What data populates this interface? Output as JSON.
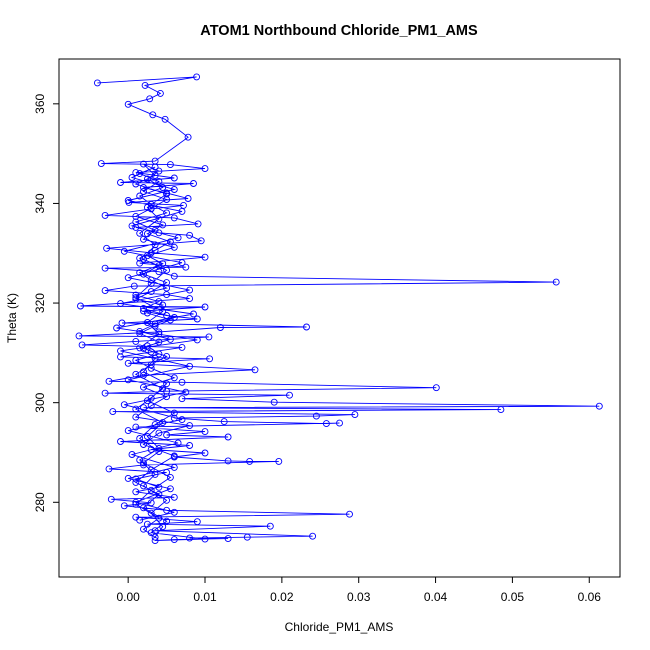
{
  "chart_data": {
    "type": "line",
    "title": "ATOM1 Northbound Chloride_PM1_AMS",
    "xlabel": "Chloride_PM1_AMS",
    "ylabel": "Theta (K)",
    "xlim": [
      -0.009,
      0.064
    ],
    "ylim": [
      265,
      369
    ],
    "x_ticks": [
      0.0,
      0.01,
      0.02,
      0.03,
      0.04,
      0.05,
      0.06
    ],
    "x_tick_labels": [
      "0.00",
      "0.01",
      "0.02",
      "0.03",
      "0.04",
      "0.05",
      "0.06"
    ],
    "y_ticks": [
      280,
      300,
      320,
      340,
      360
    ],
    "y_tick_labels": [
      "280",
      "300",
      "320",
      "340",
      "360"
    ],
    "grid": false,
    "legend": "none",
    "colors": {
      "series": "#0000ff",
      "axis": "#000000"
    },
    "series": [
      {
        "marker": "open-circle",
        "line": true,
        "points": [
          [
            -0.004,
            364.2
          ],
          [
            0.0089,
            365.4
          ],
          [
            0.0022,
            363.7
          ],
          [
            0.0042,
            362.1
          ],
          [
            0.0028,
            361.0
          ],
          [
            0.0,
            359.9
          ],
          [
            0.0032,
            357.8
          ],
          [
            0.0048,
            356.9
          ],
          [
            0.0078,
            353.3
          ],
          [
            0.0035,
            348.5
          ],
          [
            -0.0035,
            348.0
          ],
          [
            0.0055,
            347.8
          ],
          [
            0.01,
            347.0
          ],
          [
            0.001,
            346.2
          ],
          [
            0.006,
            345.1
          ],
          [
            -0.001,
            344.2
          ],
          [
            0.0085,
            344.0
          ],
          [
            0.002,
            343.2
          ],
          [
            0.005,
            342.1
          ],
          [
            0.0078,
            341.0
          ],
          [
            0.0001,
            340.2
          ],
          [
            0.0072,
            339.6
          ],
          [
            0.003,
            338.9
          ],
          [
            -0.003,
            337.6
          ],
          [
            0.006,
            337.1
          ],
          [
            0.0091,
            335.9
          ],
          [
            0.001,
            335.2
          ],
          [
            0.004,
            334.1
          ],
          [
            0.008,
            333.6
          ],
          [
            0.0095,
            332.5
          ],
          [
            -0.0028,
            331.0
          ],
          [
            0.003,
            330.1
          ],
          [
            0.01,
            329.2
          ],
          [
            0.0015,
            328.0
          ],
          [
            0.0075,
            327.2
          ],
          [
            -0.003,
            327.0
          ],
          [
            0.004,
            326.3
          ],
          [
            0.006,
            325.4
          ],
          [
            0.0557,
            324.2
          ],
          [
            0.0008,
            323.4
          ],
          [
            -0.003,
            322.5
          ],
          [
            0.005,
            321.7
          ],
          [
            0.008,
            320.9
          ],
          [
            -0.0062,
            319.4
          ],
          [
            0.01,
            319.2
          ],
          [
            0.002,
            318.4
          ],
          [
            0.005,
            317.5
          ],
          [
            0.009,
            316.8
          ],
          [
            -0.0008,
            316.0
          ],
          [
            0.0232,
            315.2
          ],
          [
            0.012,
            315.1
          ],
          [
            0.004,
            314.2
          ],
          [
            -0.0064,
            313.4
          ],
          [
            0.0105,
            313.2
          ],
          [
            0.001,
            312.3
          ],
          [
            -0.006,
            311.6
          ],
          [
            0.007,
            311.1
          ],
          [
            0.003,
            310.2
          ],
          [
            -0.001,
            309.2
          ],
          [
            0.0106,
            308.8
          ],
          [
            0.0,
            307.9
          ],
          [
            0.0165,
            306.6
          ],
          [
            0.002,
            305.5
          ],
          [
            -0.0025,
            304.3
          ],
          [
            0.007,
            304.1
          ],
          [
            0.0401,
            303.0
          ],
          [
            0.005,
            302.3
          ],
          [
            -0.003,
            301.9
          ],
          [
            0.021,
            301.5
          ],
          [
            0.007,
            300.8
          ],
          [
            0.019,
            300.1
          ],
          [
            0.0613,
            299.3
          ],
          [
            0.002,
            299.0
          ],
          [
            0.0485,
            298.6
          ],
          [
            -0.002,
            298.2
          ],
          [
            0.0295,
            297.6
          ],
          [
            0.0245,
            297.3
          ],
          [
            0.006,
            296.9
          ],
          [
            0.0125,
            296.2
          ],
          [
            0.0258,
            295.8
          ],
          [
            0.0275,
            295.9
          ],
          [
            0.001,
            295.1
          ],
          [
            0.01,
            294.2
          ],
          [
            0.005,
            293.5
          ],
          [
            0.013,
            293.1
          ],
          [
            -0.001,
            292.2
          ],
          [
            0.008,
            291.4
          ],
          [
            0.003,
            290.6
          ],
          [
            0.01,
            289.9
          ],
          [
            0.006,
            289.1
          ],
          [
            0.013,
            288.3
          ],
          [
            0.0158,
            288.2
          ],
          [
            0.0196,
            288.2
          ],
          [
            0.002,
            287.5
          ],
          [
            -0.0025,
            286.7
          ],
          [
            0.005,
            286.0
          ],
          [
            0.001,
            284.7
          ],
          [
            0.004,
            283.0
          ],
          [
            0.001,
            282.1
          ],
          [
            0.006,
            281.0
          ],
          [
            -0.0022,
            280.6
          ],
          [
            0.003,
            279.9
          ],
          [
            -0.0005,
            279.3
          ],
          [
            0.005,
            278.4
          ],
          [
            0.0288,
            277.6
          ],
          [
            0.001,
            277.0
          ],
          [
            0.009,
            276.1
          ],
          [
            0.0025,
            275.6
          ],
          [
            0.0185,
            275.2
          ],
          [
            0.0035,
            274.3
          ],
          [
            0.024,
            273.2
          ],
          [
            0.0155,
            273.0
          ],
          [
            0.008,
            272.8
          ],
          [
            0.013,
            272.7
          ],
          [
            0.006,
            272.5
          ],
          [
            0.0035,
            272.3
          ],
          [
            0.01,
            272.6
          ],
          [
            0.003,
            273.9
          ],
          [
            0.005,
            276.2
          ],
          [
            0.002,
            278.9
          ],
          [
            0.004,
            281.6
          ],
          [
            0.001,
            284.0
          ],
          [
            0.003,
            286.5
          ],
          [
            0.006,
            289.3
          ],
          [
            0.002,
            291.6
          ],
          [
            0.004,
            293.9
          ],
          [
            0.008,
            295.4
          ],
          [
            0.001,
            297.1
          ],
          [
            0.003,
            299.4
          ],
          [
            0.005,
            301.2
          ],
          [
            0.002,
            303.1
          ],
          [
            0.006,
            305.0
          ],
          [
            0.003,
            306.9
          ],
          [
            0.001,
            308.5
          ],
          [
            0.004,
            309.8
          ],
          [
            0.0025,
            311.4
          ],
          [
            0.0055,
            312.7
          ],
          [
            0.0015,
            314.3
          ],
          [
            0.0035,
            315.8
          ],
          [
            0.006,
            317.1
          ],
          [
            0.002,
            318.9
          ],
          [
            0.004,
            320.3
          ],
          [
            0.001,
            321.6
          ],
          [
            0.005,
            323.0
          ],
          [
            0.003,
            324.6
          ],
          [
            0.0015,
            326.1
          ],
          [
            0.0045,
            327.9
          ],
          [
            0.0025,
            329.5
          ],
          [
            0.006,
            331.2
          ],
          [
            0.002,
            332.8
          ],
          [
            0.0035,
            334.6
          ],
          [
            0.001,
            336.3
          ],
          [
            0.005,
            338.1
          ],
          [
            0.003,
            339.8
          ],
          [
            0.0015,
            341.5
          ],
          [
            0.0045,
            343.2
          ],
          [
            0.0025,
            344.9
          ],
          [
            0.004,
            346.5
          ],
          [
            0.002,
            347.9
          ],
          [
            0.0035,
            345.6
          ],
          [
            0.001,
            343.9
          ],
          [
            0.005,
            341.9
          ],
          [
            0.0025,
            339.2
          ],
          [
            0.004,
            336.9
          ],
          [
            0.0015,
            334.0
          ],
          [
            0.0035,
            331.7
          ],
          [
            0.002,
            328.8
          ],
          [
            0.005,
            326.6
          ],
          [
            0.003,
            323.9
          ],
          [
            0.001,
            321.1
          ],
          [
            0.0045,
            318.3
          ],
          [
            0.0025,
            316.1
          ],
          [
            0.004,
            313.8
          ],
          [
            0.0015,
            311.0
          ],
          [
            0.0035,
            308.9
          ],
          [
            0.002,
            306.2
          ],
          [
            0.005,
            303.8
          ],
          [
            0.003,
            300.9
          ],
          [
            0.001,
            298.7
          ],
          [
            0.0045,
            296.0
          ],
          [
            0.0025,
            293.2
          ],
          [
            0.004,
            290.8
          ],
          [
            0.0015,
            288.5
          ],
          [
            0.0035,
            285.6
          ],
          [
            0.002,
            283.3
          ],
          [
            0.005,
            280.4
          ],
          [
            0.003,
            277.8
          ],
          [
            0.0045,
            275.1
          ],
          [
            0.0035,
            273.0
          ],
          [
            0.002,
            274.6
          ],
          [
            0.004,
            276.8
          ],
          [
            0.001,
            279.6
          ],
          [
            0.003,
            282.4
          ],
          [
            0.0055,
            285.0
          ],
          [
            0.002,
            287.9
          ],
          [
            0.004,
            290.2
          ],
          [
            0.0015,
            292.8
          ],
          [
            0.0035,
            295.6
          ],
          [
            0.006,
            297.9
          ],
          [
            0.0025,
            300.4
          ],
          [
            0.0045,
            302.8
          ],
          [
            0.001,
            305.7
          ],
          [
            0.003,
            307.6
          ],
          [
            0.005,
            309.3
          ],
          [
            0.002,
            310.9
          ],
          [
            0.004,
            312.2
          ],
          [
            0.0015,
            313.9
          ],
          [
            0.0035,
            315.4
          ],
          [
            0.0055,
            316.6
          ],
          [
            0.0025,
            318.0
          ],
          [
            0.0045,
            319.6
          ],
          [
            0.001,
            320.8
          ],
          [
            0.003,
            322.3
          ],
          [
            0.005,
            324.1
          ],
          [
            0.002,
            325.8
          ],
          [
            0.004,
            327.5
          ],
          [
            0.0015,
            329.0
          ],
          [
            0.0035,
            330.6
          ],
          [
            0.0055,
            332.3
          ],
          [
            0.0025,
            333.9
          ],
          [
            0.0045,
            335.7
          ],
          [
            0.001,
            337.4
          ],
          [
            0.003,
            339.0
          ],
          [
            0.005,
            340.8
          ],
          [
            0.002,
            342.4
          ],
          [
            0.004,
            344.4
          ],
          [
            0.0015,
            346.0
          ],
          [
            0.0035,
            347.3
          ],
          [
            0.0005,
            345.2
          ],
          [
            0.006,
            342.8
          ],
          [
            0.0,
            340.6
          ],
          [
            0.007,
            338.4
          ],
          [
            0.0005,
            335.5
          ],
          [
            0.0065,
            333.1
          ],
          [
            -0.0005,
            330.4
          ],
          [
            0.007,
            328.1
          ],
          [
            0.0,
            325.1
          ],
          [
            0.008,
            322.6
          ],
          [
            -0.001,
            319.9
          ],
          [
            0.0085,
            317.8
          ],
          [
            -0.0015,
            315.0
          ],
          [
            0.009,
            312.6
          ],
          [
            -0.001,
            310.4
          ],
          [
            0.008,
            307.3
          ],
          [
            0.0,
            304.6
          ],
          [
            0.0075,
            302.1
          ],
          [
            -0.0005,
            299.6
          ],
          [
            0.007,
            296.6
          ],
          [
            0.0,
            294.4
          ],
          [
            0.0065,
            291.9
          ],
          [
            0.0005,
            289.6
          ],
          [
            0.006,
            287.0
          ],
          [
            0.0,
            284.8
          ],
          [
            0.0055,
            282.7
          ],
          [
            0.001,
            280.0
          ],
          [
            0.006,
            278.0
          ],
          [
            0.0015,
            276.4
          ]
        ]
      }
    ]
  }
}
